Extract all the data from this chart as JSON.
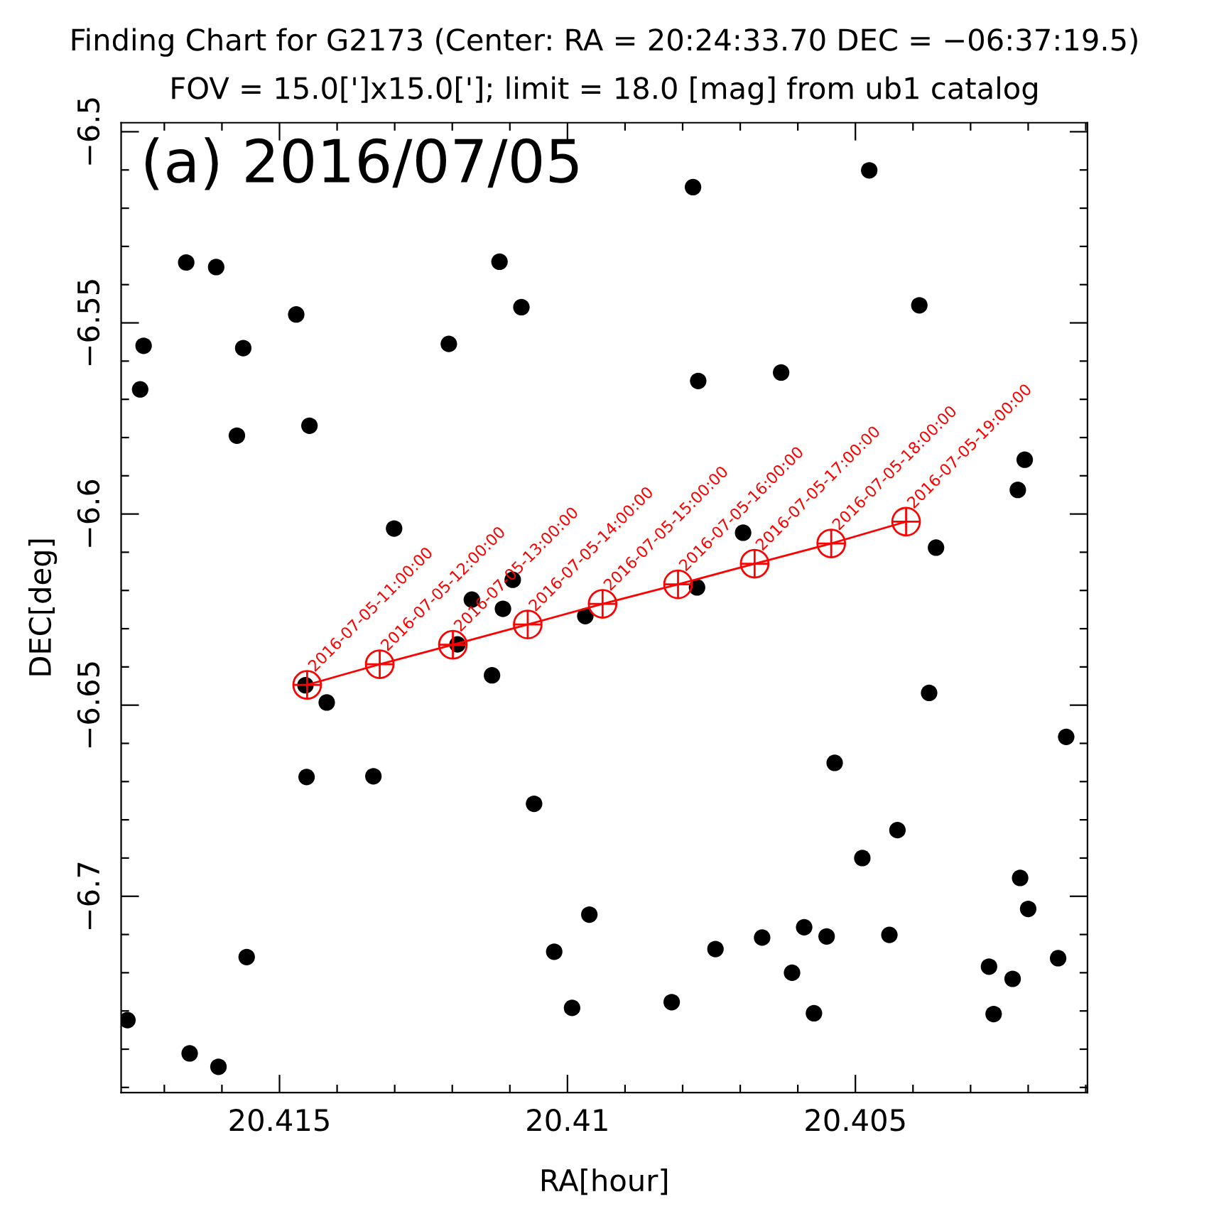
{
  "chart_data": {
    "type": "scatter",
    "title": "Finding Chart for G2173 (Center: RA = 20:24:33.70 DEC = −06:37:19.5)",
    "subtitle": "FOV = 15.0[']x15.0[']; limit = 18.0 [mag] from ub1 catalog",
    "xlabel": "RA[hour]",
    "ylabel": "DEC[deg]",
    "xlim": [
      20.41775,
      20.40097
    ],
    "ylim": [
      -6.75135,
      -6.49764
    ],
    "xticks": [
      {
        "value": 20.417,
        "label": null
      },
      {
        "value": 20.416,
        "label": null
      },
      20.415,
      {
        "value": 20.414,
        "label": null
      },
      {
        "value": 20.413,
        "label": null
      },
      {
        "value": 20.412,
        "label": null
      },
      {
        "value": 20.411,
        "label": null
      },
      20.41,
      {
        "value": 20.409,
        "label": null
      },
      {
        "value": 20.408,
        "label": null
      },
      {
        "value": 20.407,
        "label": null
      },
      {
        "value": 20.406,
        "label": null
      },
      20.405,
      {
        "value": 20.404,
        "label": null
      },
      {
        "value": 20.403,
        "label": null
      },
      {
        "value": 20.402,
        "label": null
      },
      {
        "value": 20.401,
        "label": null
      }
    ],
    "yticks": [
      {
        "value": -6.5,
        "label": "−6.5"
      },
      {
        "value": -6.51,
        "label": null
      },
      {
        "value": -6.52,
        "label": null
      },
      {
        "value": -6.53,
        "label": null
      },
      {
        "value": -6.54,
        "label": null
      },
      {
        "value": -6.55,
        "label": "−6.55"
      },
      {
        "value": -6.56,
        "label": null
      },
      {
        "value": -6.57,
        "label": null
      },
      {
        "value": -6.58,
        "label": null
      },
      {
        "value": -6.59,
        "label": null
      },
      {
        "value": -6.6,
        "label": "−6.6"
      },
      {
        "value": -6.61,
        "label": null
      },
      {
        "value": -6.62,
        "label": null
      },
      {
        "value": -6.63,
        "label": null
      },
      {
        "value": -6.64,
        "label": null
      },
      {
        "value": -6.65,
        "label": "−6.65"
      },
      {
        "value": -6.66,
        "label": null
      },
      {
        "value": -6.67,
        "label": null
      },
      {
        "value": -6.68,
        "label": null
      },
      {
        "value": -6.69,
        "label": null
      },
      {
        "value": -6.7,
        "label": "−6.7"
      },
      {
        "value": -6.71,
        "label": null
      },
      {
        "value": -6.72,
        "label": null
      },
      {
        "value": -6.73,
        "label": null
      },
      {
        "value": -6.74,
        "label": null
      },
      {
        "value": -6.75,
        "label": null
      }
    ],
    "grid": false,
    "series": [
      {
        "color": "#000000",
        "marker": "circle",
        "x": [
          20.41764,
          20.41736,
          20.41742,
          20.41662,
          20.4161,
          20.41574,
          20.41563,
          20.41557,
          20.41656,
          20.41606,
          20.41471,
          20.41448,
          20.41453,
          20.41418,
          20.41455,
          20.41337,
          20.41301,
          20.41206,
          20.41191,
          20.41166,
          20.41112,
          20.41095,
          20.41131,
          20.41118,
          20.4108,
          20.41058,
          20.41023,
          20.40992,
          20.40969,
          20.40962,
          20.40782,
          20.40773,
          20.40775,
          20.40819,
          20.40743,
          20.40695,
          20.40662,
          20.40629,
          20.4061,
          20.40589,
          20.40572,
          20.4055,
          20.40536,
          20.40488,
          20.40476,
          20.40427,
          20.40441,
          20.40389,
          20.40372,
          20.4036,
          20.40268,
          20.4026,
          20.40227,
          20.40214,
          20.402,
          20.40218,
          20.40206,
          20.40148,
          20.40134
        ],
        "values": [
          -6.7324,
          -6.556,
          -6.5674,
          -6.5342,
          -6.5354,
          -6.5795,
          -6.5566,
          -6.7159,
          -6.7411,
          -6.7446,
          -6.5478,
          -6.5769,
          -6.6688,
          -6.6493,
          -6.6448,
          -6.6686,
          -6.6038,
          -6.5555,
          -6.6341,
          -6.6224,
          -6.6248,
          -6.6172,
          -6.6422,
          -6.534,
          -6.5459,
          -6.6758,
          -6.7145,
          -6.7292,
          -6.6267,
          -6.7048,
          -6.5145,
          -6.5652,
          -6.6192,
          -6.7277,
          -6.7138,
          -6.6049,
          -6.7108,
          -6.563,
          -6.72,
          -6.7081,
          -6.7306,
          -6.7105,
          -6.6651,
          -6.69,
          -6.5101,
          -6.6827,
          -6.7101,
          -6.5454,
          -6.6468,
          -6.6088,
          -6.7184,
          -6.7308,
          -6.7216,
          -6.6952,
          -6.7033,
          -6.5937,
          -6.5858,
          -6.7162,
          -6.6583
        ]
      },
      {
        "type": "line",
        "color": "#ff0000",
        "marker": "circle",
        "x": [
          20.41452,
          20.41326,
          20.41199,
          20.41069,
          20.40939,
          20.40808,
          20.40675,
          20.40542,
          20.40412
        ],
        "values": [
          -6.6447,
          -6.6393,
          -6.6342,
          -6.6289,
          -6.6235,
          -6.6184,
          -6.613,
          -6.6077,
          -6.602
        ]
      }
    ],
    "annotations": [
      "(a) 2016/07/05",
      {
        "text": "2016-07-05-11:00:00",
        "x": 20.41452,
        "y": -6.6447
      },
      {
        "text": "2016-07-05-12:00:00",
        "x": 20.41326,
        "y": -6.6393
      },
      {
        "text": "2016-07-05-13:00:00",
        "x": 20.41199,
        "y": -6.6342
      },
      {
        "text": "2016-07-05-14:00:00",
        "x": 20.41069,
        "y": -6.6289
      },
      {
        "text": "2016-07-05-15:00:00",
        "x": 20.40939,
        "y": -6.6235
      },
      {
        "text": "2016-07-05-16:00:00",
        "x": 20.40808,
        "y": -6.6184
      },
      {
        "text": "2016-07-05-17:00:00",
        "x": 20.40675,
        "y": -6.613
      },
      {
        "text": "2016-07-05-18:00:00",
        "x": 20.40542,
        "y": -6.6077
      },
      {
        "text": "2016-07-05-19:00:00",
        "x": 20.40412,
        "y": -6.602
      }
    ]
  }
}
